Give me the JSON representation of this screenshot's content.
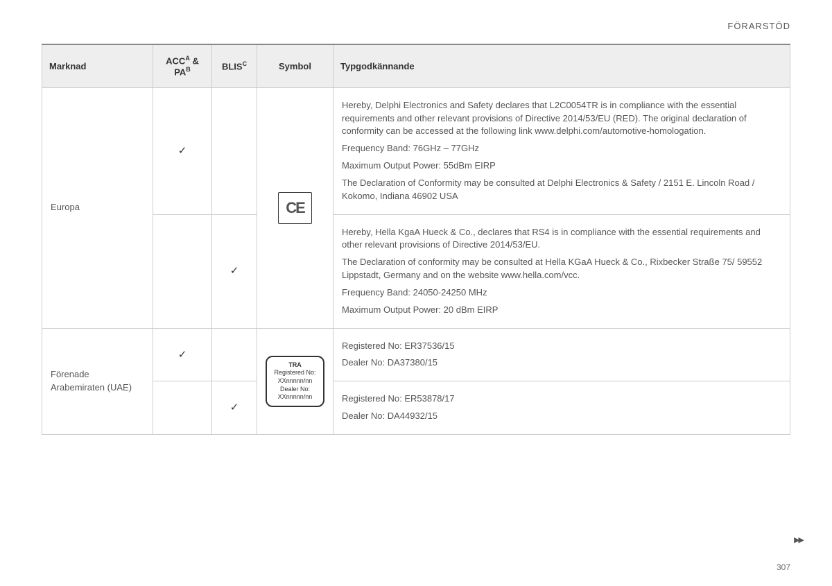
{
  "header": {
    "title": "FÖRARSTÖD"
  },
  "page_number": "307",
  "table": {
    "columns": {
      "marknad": "Marknad",
      "acc_pa": {
        "acc": "ACC",
        "supA": "A",
        "amp": " & ",
        "pa": "PA",
        "supB": "B"
      },
      "blis": {
        "text": "BLIS",
        "supC": "C"
      },
      "symbol": "Symbol",
      "typ": "Typgodkännande"
    },
    "rows": {
      "europa": {
        "marknad": "Europa",
        "r1": {
          "acc_check": "✓",
          "blis_check": "",
          "typ": {
            "p1": "Hereby, Delphi Electronics and Safety declares that L2C0054TR is in compliance with the essential requirements and other relevant provisions of Directive 2014/53/EU (RED). The original declaration of conformity can be accessed at the following link www.delphi.com/automotive-homologation.",
            "p2": "Frequency Band: 76GHz – 77GHz",
            "p3": "Maximum Output Power: 55dBm EIRP",
            "p4": "The Declaration of Conformity may be consulted at Delphi Electronics & Safety / 2151 E. Lincoln Road / Kokomo, Indiana 46902 USA"
          }
        },
        "r2": {
          "acc_check": "",
          "blis_check": "✓",
          "typ": {
            "p1": "Hereby, Hella KgaA Hueck & Co., declares that RS4 is in compliance with the essential requirements and other relevant provisions of Directive 2014/53/EU.",
            "p2": "The Declaration of conformity may be consulted at Hella KGaA Hueck & Co., Rixbecker Straße 75/ 59552 Lippstadt, Germany and on the website www.hella.com/vcc.",
            "p3": "Frequency Band: 24050-24250 MHz",
            "p4": "Maximum Output Power: 20 dBm EIRP"
          }
        },
        "symbol": {
          "ce": "CE"
        }
      },
      "uae": {
        "marknad": "Förenade Arabemiraten (UAE)",
        "r1": {
          "acc_check": "✓",
          "blis_check": "",
          "typ": {
            "p1": "Registered No: ER37536/15",
            "p2": "Dealer No: DA37380/15"
          }
        },
        "r2": {
          "acc_check": "",
          "blis_check": "✓",
          "typ": {
            "p1": "Registered No: ER53878/17",
            "p2": "Dealer No: DA44932/15"
          }
        },
        "symbol": {
          "tra": {
            "l1": "TRA",
            "l2": "Registered No:",
            "l3": "XXnnnnn/nn",
            "l4": "Dealer No:",
            "l5": "XXnnnnn/nn"
          }
        }
      }
    }
  },
  "cont_marker": "▶▶"
}
